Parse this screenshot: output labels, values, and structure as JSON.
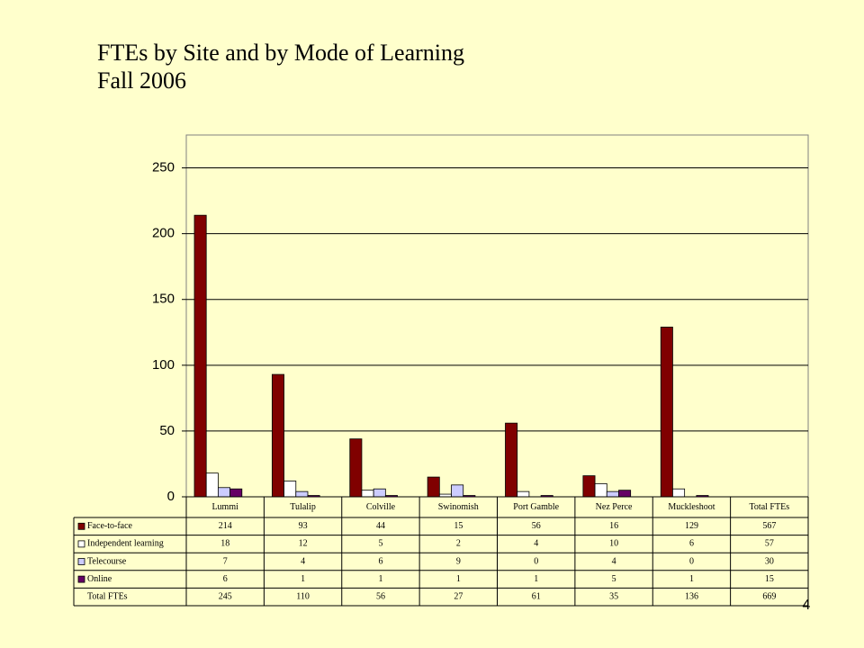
{
  "page_number": "4",
  "chart_data": {
    "type": "bar",
    "title": "FTEs by Site and by Mode of Learning",
    "subtitle": "Fall 2006",
    "categories": [
      "Lummi",
      "Tulalip",
      "Colville",
      "Swinomish",
      "Port Gamble",
      "Nez Perce",
      "Muckleshoot"
    ],
    "total_column": "Total FTEs",
    "series": [
      {
        "name": "Face-to-face",
        "color": "#800000",
        "values": [
          214,
          93,
          44,
          15,
          56,
          16,
          129
        ],
        "total": 567
      },
      {
        "name": "Independent learning",
        "color": "#ffffff",
        "values": [
          18,
          12,
          5,
          2,
          4,
          10,
          6
        ],
        "total": 57
      },
      {
        "name": "Telecourse",
        "color": "#ccccff",
        "values": [
          7,
          4,
          6,
          9,
          0,
          4,
          0
        ],
        "total": 30
      },
      {
        "name": "Online",
        "color": "#660066",
        "values": [
          6,
          1,
          1,
          1,
          1,
          5,
          1
        ],
        "total": 15
      }
    ],
    "total_row": {
      "name": "Total FTEs",
      "values": [
        245,
        110,
        56,
        27,
        61,
        35,
        136
      ],
      "total": 669
    },
    "ylim": [
      0,
      275
    ],
    "yticks": [
      0,
      50,
      100,
      150,
      200,
      250
    ],
    "grid": true
  }
}
